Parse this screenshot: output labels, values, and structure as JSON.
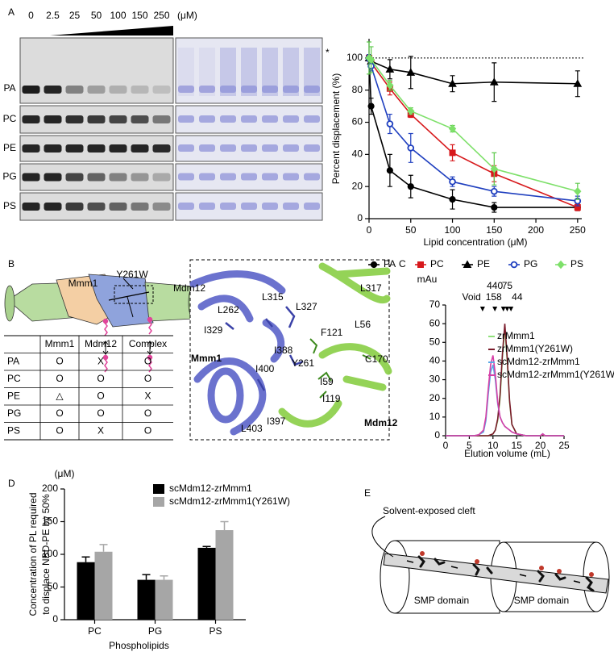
{
  "panel_labels": [
    "A",
    "B",
    "C",
    "D",
    "E"
  ],
  "gel": {
    "concentrations": [
      "0",
      "2.5",
      "25",
      "50",
      "100",
      "150",
      "250"
    ],
    "unit": "(μM)",
    "lipids": [
      "PA",
      "PC",
      "PE",
      "PG",
      "PS"
    ],
    "asterisk": "*"
  },
  "schematic": {
    "labels": [
      "Mmm1",
      "Y261W",
      "Mdm12"
    ]
  },
  "table": {
    "header": [
      "Mmm1",
      "Mdm12",
      "Complex"
    ],
    "rows": [
      [
        "PA",
        "O",
        "X",
        "O"
      ],
      [
        "PC",
        "O",
        "O",
        "O"
      ],
      [
        "PE",
        "△",
        "O",
        "X"
      ],
      [
        "PG",
        "O",
        "O",
        "O"
      ],
      [
        "PS",
        "O",
        "X",
        "O"
      ]
    ]
  },
  "structure": {
    "labels": [
      "L317",
      "L315",
      "L327",
      "L262",
      "I329",
      "F121",
      "L56",
      "I388",
      "Y261",
      "C170",
      "I400",
      "Mmm1",
      "I59",
      "I119",
      "I397",
      "L403",
      "Mdm12"
    ]
  },
  "diagram": {
    "callout": "Solvent-exposed cleft",
    "domains": [
      "SMP domain",
      "SMP domain"
    ]
  },
  "chart_data": [
    {
      "type": "line",
      "xlabel": "Lipid concentration (μM)",
      "ylabel": "Percent displacement (%)",
      "x": [
        0,
        2.5,
        25,
        50,
        100,
        150,
        250
      ],
      "xlim": [
        0,
        255
      ],
      "xticks": [
        0,
        50,
        100,
        150,
        200,
        250
      ],
      "ylim": [
        0,
        112
      ],
      "yticks": [
        0,
        20,
        40,
        60,
        80,
        100
      ],
      "reference_line": 100,
      "legend": "bottom",
      "series": [
        {
          "name": "PA",
          "color": "#000000",
          "marker": "circle",
          "values": [
            100,
            70,
            30,
            20,
            12,
            7,
            7
          ],
          "errors": [
            0,
            5,
            10,
            7,
            6,
            3,
            2
          ]
        },
        {
          "name": "PC",
          "color": "#d7191c",
          "marker": "square",
          "values": [
            100,
            97,
            81,
            65,
            41,
            28,
            7
          ],
          "errors": [
            2,
            3,
            4,
            2,
            5,
            5,
            2
          ]
        },
        {
          "name": "PE",
          "color": "#000000",
          "marker": "triangle",
          "values": [
            100,
            98,
            93,
            91,
            84,
            85,
            84
          ],
          "errors": [
            2,
            2,
            6,
            10,
            5,
            12,
            8
          ]
        },
        {
          "name": "PG",
          "color": "#1f3fbf",
          "marker": "open-circle",
          "values": [
            100,
            95,
            59,
            44,
            23,
            17,
            11
          ],
          "errors": [
            2,
            3,
            6,
            9,
            3,
            3,
            3
          ]
        },
        {
          "name": "PS",
          "color": "#7ee06a",
          "marker": "diamond",
          "values": [
            100,
            99,
            83,
            67,
            56,
            31,
            17
          ],
          "errors": [
            10,
            8,
            3,
            2,
            2,
            10,
            5
          ]
        }
      ]
    },
    {
      "type": "line",
      "ylabel": "mAu",
      "xlabel": "Elution volume (mL)",
      "x": [
        0,
        4,
        6,
        7,
        8,
        8.5,
        9,
        9.5,
        10,
        10.5,
        11,
        11.5,
        12,
        12.5,
        13,
        13.5,
        14,
        15,
        17,
        20,
        20.5,
        21,
        25
      ],
      "xlim": [
        0,
        25
      ],
      "xticks": [
        0,
        5,
        10,
        15,
        20,
        25
      ],
      "ylim": [
        0,
        70
      ],
      "yticks": [
        0,
        10,
        20,
        30,
        40,
        50,
        60,
        70
      ],
      "markers": [
        {
          "label": "Void",
          "x": 7.8
        },
        {
          "label": "440",
          "x": 10.4
        },
        {
          "label": "158",
          "x": 12.2
        },
        {
          "label": "75",
          "x": 13.0
        },
        {
          "label": "44",
          "x": 13.8
        }
      ],
      "legend": "upper right",
      "series": [
        {
          "name": "zrMmm1",
          "color": "#8fe07a",
          "values": [
            0,
            0,
            0,
            0,
            0,
            0,
            0,
            0.5,
            1,
            3,
            8,
            20,
            42,
            58,
            40,
            18,
            6,
            1,
            0,
            0,
            0.5,
            0,
            0
          ]
        },
        {
          "name": "zrMmm1(Y261W)",
          "color": "#7a1a2a",
          "values": [
            0,
            0,
            0,
            0,
            0,
            0,
            0,
            0.5,
            1,
            3,
            9,
            22,
            44,
            60,
            42,
            19,
            6,
            1,
            0,
            0,
            0.5,
            0,
            0
          ]
        },
        {
          "name": "scMdm12-zrMmm1",
          "color": "#5aa9e6",
          "values": [
            0,
            0,
            0,
            0.5,
            2,
            8,
            22,
            34,
            38,
            30,
            17,
            10,
            7,
            5,
            4,
            3,
            2,
            1,
            0,
            0,
            1,
            0,
            0
          ]
        },
        {
          "name": "scMdm12-zrMmm1(Y261W)",
          "color": "#d63fa6",
          "values": [
            0,
            0,
            0,
            0.5,
            3,
            10,
            25,
            38,
            43,
            33,
            18,
            10,
            7,
            5,
            4,
            3,
            2,
            1,
            0,
            0,
            1,
            0,
            0
          ]
        }
      ]
    },
    {
      "type": "bar",
      "unit": "(μM)",
      "ylabel": [
        "Concentration of PL required",
        "to displace NBD-PE by 50%"
      ],
      "xlabel": "Phospholipids",
      "categories": [
        "PC",
        "PG",
        "PS"
      ],
      "ylim": [
        0,
        200
      ],
      "yticks": [
        0,
        50,
        100,
        150,
        200
      ],
      "legend": "upper center",
      "series": [
        {
          "name": "scMdm12-zrMmm1",
          "color": "#000000",
          "values": [
            88,
            61,
            110
          ],
          "errors": [
            8,
            8,
            2
          ]
        },
        {
          "name": "scMdm12-zrMmm1(Y261W)",
          "color": "#a6a6a6",
          "values": [
            104,
            61,
            137
          ],
          "errors": [
            11,
            6,
            13
          ]
        }
      ]
    }
  ]
}
